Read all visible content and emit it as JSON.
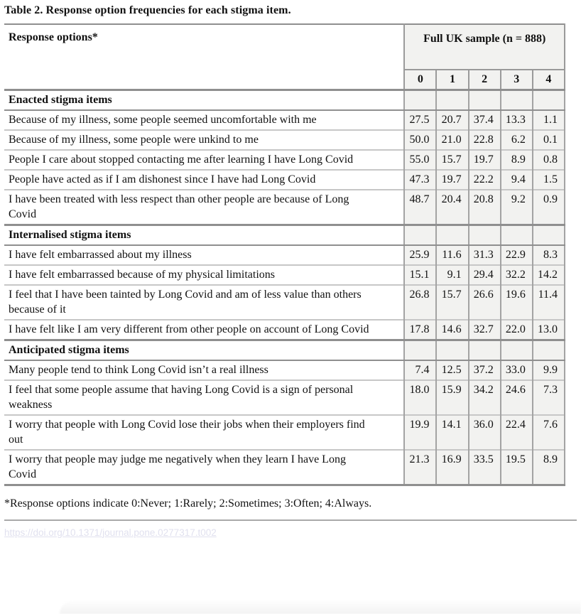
{
  "page": {
    "title": "Table 2. Response option frequencies for each stigma item.",
    "footnote": "*Response options indicate 0:Never; 1:Rarely; 2:Sometimes; 3:Often; 4:Always.",
    "doi_link": "https://doi.org/10.1371/journal.pone.0277317.t002"
  },
  "colors": {
    "cell_background": "#f2f2f0",
    "heavy_rule": "#8f8f8f",
    "light_rule": "#c7c7c7",
    "vertical_rule": "#a3a3a3",
    "doi_text": "#e1e1ef"
  },
  "table": {
    "corner_label": "Response options*",
    "sample_label": "Full UK sample (n = 888)",
    "value_headers": [
      "0",
      "1",
      "2",
      "3",
      "4"
    ],
    "sections": [
      {
        "label": "Enacted stigma items",
        "rows": [
          {
            "item": "Because of my illness, some people seemed uncomfortable with me",
            "values": [
              "27.5",
              "20.7",
              "37.4",
              "13.3",
              "1.1"
            ]
          },
          {
            "item": "Because of my illness, some people were unkind to me",
            "values": [
              "50.0",
              "21.0",
              "22.8",
              "6.2",
              "0.1"
            ]
          },
          {
            "item": "People I care about stopped contacting me after learning I have Long Covid",
            "values": [
              "55.0",
              "15.7",
              "19.7",
              "8.9",
              "0.8"
            ]
          },
          {
            "item": "People have acted as if I am dishonest since I have had Long Covid",
            "values": [
              "47.3",
              "19.7",
              "22.2",
              "9.4",
              "1.5"
            ]
          },
          {
            "item": "I have been treated with less respect than other people are because of Long Covid",
            "values": [
              "48.7",
              "20.4",
              "20.8",
              "9.2",
              "0.9"
            ]
          }
        ]
      },
      {
        "label": "Internalised stigma items",
        "rows": [
          {
            "item": "I have felt embarrassed about my illness",
            "values": [
              "25.9",
              "11.6",
              "31.3",
              "22.9",
              "8.3"
            ]
          },
          {
            "item": "I have felt embarrassed because of my physical limitations",
            "values": [
              "15.1",
              "9.1",
              "29.4",
              "32.2",
              "14.2"
            ]
          },
          {
            "item": "I feel that I have been tainted by Long Covid and am of less value than others because of it",
            "values": [
              "26.8",
              "15.7",
              "26.6",
              "19.6",
              "11.4"
            ]
          },
          {
            "item": "I have felt like I am very different from other people on account of Long Covid",
            "values": [
              "17.8",
              "14.6",
              "32.7",
              "22.0",
              "13.0"
            ]
          }
        ]
      },
      {
        "label": "Anticipated stigma items",
        "rows": [
          {
            "item": "Many people tend to think Long Covid isn’t a real illness",
            "values": [
              "7.4",
              "12.5",
              "37.2",
              "33.0",
              "9.9"
            ]
          },
          {
            "item": "I feel that some people assume that having Long Covid is a sign of personal weakness",
            "values": [
              "18.0",
              "15.9",
              "34.2",
              "24.6",
              "7.3"
            ]
          },
          {
            "item": "I worry that people with Long Covid lose their jobs when their employers find out",
            "values": [
              "19.9",
              "14.1",
              "36.0",
              "22.4",
              "7.6"
            ]
          },
          {
            "item": "I worry that people may judge me negatively when they learn I have Long Covid",
            "values": [
              "21.3",
              "16.9",
              "33.5",
              "19.5",
              "8.9"
            ]
          }
        ]
      }
    ]
  }
}
